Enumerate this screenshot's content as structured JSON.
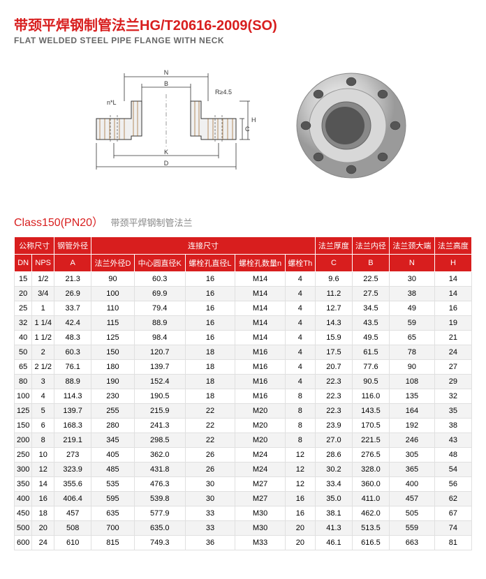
{
  "title_cn": "带颈平焊钢制管法兰HG/T20616-2009(SO)",
  "title_en": "FLAT WELDED STEEL PIPE FLANGE WITH NECK",
  "diagram_labels": {
    "N": "N",
    "B": "B",
    "R": "R≥4.5",
    "nL": "n*L",
    "H": "H",
    "C": "C",
    "K": "K",
    "D": "D"
  },
  "table_title": "Class150(PN20）",
  "table_title_sub": "带颈平焊钢制管法兰",
  "headers": {
    "nominal": "公称尺寸",
    "pipe_od": "钢管外径",
    "conn": "连接尺寸",
    "flange_th": "法兰厚度",
    "flange_id": "法兰内径",
    "neck_big": "法兰颈大端",
    "flange_h": "法兰高度",
    "DN": "DN",
    "NPS": "NPS",
    "A": "A",
    "fD": "法兰外径D",
    "K": "中心圆直径K",
    "L": "螺栓孔直径L",
    "n": "螺栓孔数量n",
    "Th": "螺栓Th",
    "C": "C",
    "B": "B",
    "N": "N",
    "H": "H"
  },
  "rows": [
    [
      "15",
      "1/2",
      "21.3",
      "90",
      "60.3",
      "16",
      "M14",
      "4",
      "9.6",
      "22.5",
      "30",
      "14"
    ],
    [
      "20",
      "3/4",
      "26.9",
      "100",
      "69.9",
      "16",
      "M14",
      "4",
      "11.2",
      "27.5",
      "38",
      "14"
    ],
    [
      "25",
      "1",
      "33.7",
      "110",
      "79.4",
      "16",
      "M14",
      "4",
      "12.7",
      "34.5",
      "49",
      "16"
    ],
    [
      "32",
      "1 1/4",
      "42.4",
      "115",
      "88.9",
      "16",
      "M14",
      "4",
      "14.3",
      "43.5",
      "59",
      "19"
    ],
    [
      "40",
      "1 1/2",
      "48.3",
      "125",
      "98.4",
      "16",
      "M14",
      "4",
      "15.9",
      "49.5",
      "65",
      "21"
    ],
    [
      "50",
      "2",
      "60.3",
      "150",
      "120.7",
      "18",
      "M16",
      "4",
      "17.5",
      "61.5",
      "78",
      "24"
    ],
    [
      "65",
      "2 1/2",
      "76.1",
      "180",
      "139.7",
      "18",
      "M16",
      "4",
      "20.7",
      "77.6",
      "90",
      "27"
    ],
    [
      "80",
      "3",
      "88.9",
      "190",
      "152.4",
      "18",
      "M16",
      "4",
      "22.3",
      "90.5",
      "108",
      "29"
    ],
    [
      "100",
      "4",
      "114.3",
      "230",
      "190.5",
      "18",
      "M16",
      "8",
      "22.3",
      "116.0",
      "135",
      "32"
    ],
    [
      "125",
      "5",
      "139.7",
      "255",
      "215.9",
      "22",
      "M20",
      "8",
      "22.3",
      "143.5",
      "164",
      "35"
    ],
    [
      "150",
      "6",
      "168.3",
      "280",
      "241.3",
      "22",
      "M20",
      "8",
      "23.9",
      "170.5",
      "192",
      "38"
    ],
    [
      "200",
      "8",
      "219.1",
      "345",
      "298.5",
      "22",
      "M20",
      "8",
      "27.0",
      "221.5",
      "246",
      "43"
    ],
    [
      "250",
      "10",
      "273",
      "405",
      "362.0",
      "26",
      "M24",
      "12",
      "28.6",
      "276.5",
      "305",
      "48"
    ],
    [
      "300",
      "12",
      "323.9",
      "485",
      "431.8",
      "26",
      "M24",
      "12",
      "30.2",
      "328.0",
      "365",
      "54"
    ],
    [
      "350",
      "14",
      "355.6",
      "535",
      "476.3",
      "30",
      "M27",
      "12",
      "33.4",
      "360.0",
      "400",
      "56"
    ],
    [
      "400",
      "16",
      "406.4",
      "595",
      "539.8",
      "30",
      "M27",
      "16",
      "35.0",
      "411.0",
      "457",
      "62"
    ],
    [
      "450",
      "18",
      "457",
      "635",
      "577.9",
      "33",
      "M30",
      "16",
      "38.1",
      "462.0",
      "505",
      "67"
    ],
    [
      "500",
      "20",
      "508",
      "700",
      "635.0",
      "33",
      "M30",
      "20",
      "41.3",
      "513.5",
      "559",
      "74"
    ],
    [
      "600",
      "24",
      "610",
      "815",
      "749.3",
      "36",
      "M33",
      "20",
      "46.1",
      "616.5",
      "663",
      "81"
    ]
  ],
  "colors": {
    "title": "#d81e1e",
    "header_bg": "#d81e1e",
    "alt_row": "#f3f3f3",
    "subtitle": "#666666"
  }
}
